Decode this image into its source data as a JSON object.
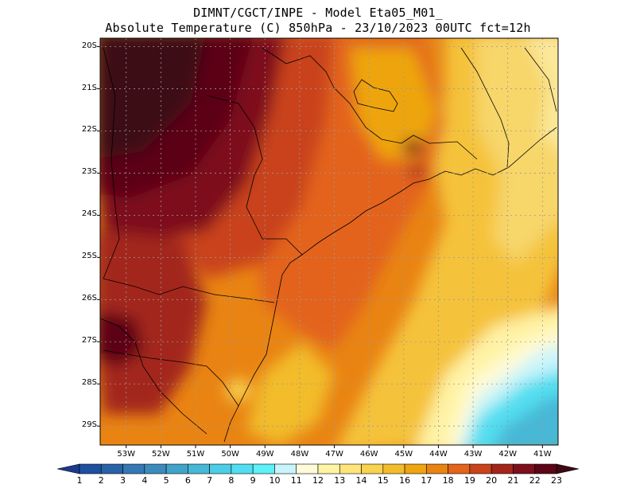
{
  "header": {
    "line1": "DIMNT/CGCT/INPE -  Model Eta05_M01_",
    "line2": "Absolute Temperature (C) 850hPa -  23/10/2023 00UTC fct=12h"
  },
  "map": {
    "variable": "Absolute Temperature",
    "units": "C",
    "level": "850hPa",
    "lat_labels": [
      "20S",
      "21S",
      "22S",
      "23S",
      "24S",
      "25S",
      "26S",
      "27S",
      "28S",
      "29S"
    ],
    "lon_labels": [
      "53W",
      "52W",
      "51W",
      "50W",
      "49W",
      "48W",
      "47W",
      "46W",
      "45W",
      "44W",
      "43W",
      "42W",
      "41W"
    ],
    "lat_range": [
      -29.45,
      -19.8
    ],
    "lon_range": [
      -53.75,
      -40.55
    ]
  },
  "colorbar": {
    "labels": [
      "1",
      "2",
      "3",
      "4",
      "5",
      "6",
      "7",
      "8",
      "9",
      "10",
      "11",
      "12",
      "13",
      "14",
      "15",
      "16",
      "17",
      "18",
      "19",
      "20",
      "21",
      "22",
      "23"
    ],
    "colors": [
      "#1a3a8c",
      "#1f4f9f",
      "#2a62a8",
      "#3578b4",
      "#3c8bbd",
      "#42a3c8",
      "#47b8d6",
      "#4ccde6",
      "#52def0",
      "#5ef1f8",
      "#c9f4fa",
      "#fffbd8",
      "#fff3a6",
      "#ffe479",
      "#f9d24e",
      "#f2bc2b",
      "#eea511",
      "#e98413",
      "#e3641a",
      "#c9431b",
      "#a3251a",
      "#7e0f1c",
      "#5c0517",
      "#3d0812"
    ]
  }
}
